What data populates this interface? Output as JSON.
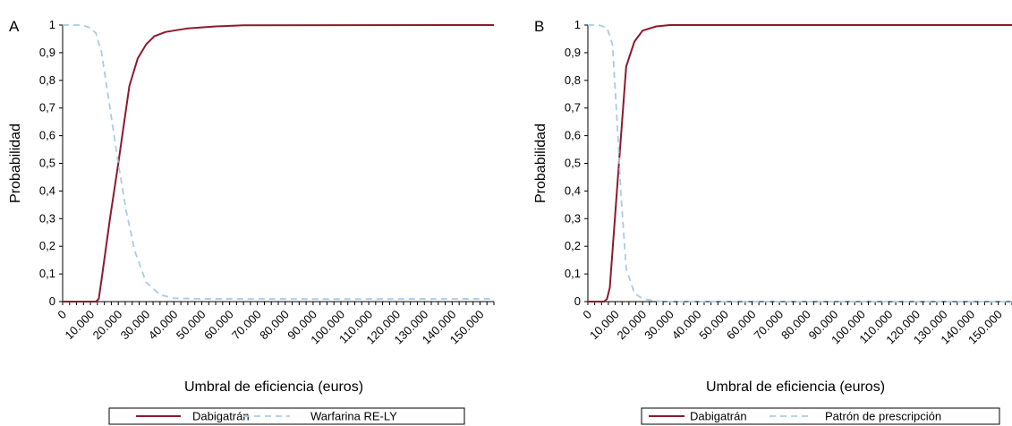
{
  "chart_data": [
    {
      "panel": "A",
      "type": "line",
      "xlabel": "Umbral de eficiencia (euros)",
      "ylabel": "Probabilidad",
      "xlim": [
        0,
        155000
      ],
      "ylim": [
        0,
        1
      ],
      "x_ticks": [
        "0",
        "10.000",
        "20.000",
        "30.000",
        "40.000",
        "50.000",
        "60.000",
        "70.000",
        "80.000",
        "90.000",
        "100.000",
        "110.000",
        "120.000",
        "130.000",
        "140.000",
        "150.000"
      ],
      "y_ticks": [
        "0",
        "0,1",
        "0,2",
        "0,3",
        "0,4",
        "0,5",
        "0,6",
        "0,7",
        "0,8",
        "0,9",
        "1"
      ],
      "grid": false,
      "legend_position": "bottom",
      "series": [
        {
          "name": "Dabigatrán",
          "color": "#8b1a2e",
          "dash": "solid",
          "points": [
            [
              0,
              0
            ],
            [
              10000,
              0
            ],
            [
              12000,
              0
            ],
            [
              13000,
              0.01
            ],
            [
              14000,
              0.08
            ],
            [
              17000,
              0.3
            ],
            [
              20000,
              0.5
            ],
            [
              22000,
              0.64
            ],
            [
              24000,
              0.78
            ],
            [
              27000,
              0.88
            ],
            [
              30000,
              0.93
            ],
            [
              33000,
              0.96
            ],
            [
              37000,
              0.975
            ],
            [
              45000,
              0.988
            ],
            [
              55000,
              0.995
            ],
            [
              65000,
              0.999
            ],
            [
              155000,
              1.0
            ]
          ]
        },
        {
          "name": "Warfarina RE-LY",
          "color": "#a8cbe8",
          "dash": "dashed",
          "points": [
            [
              0,
              1.0
            ],
            [
              7000,
              1.0
            ],
            [
              10000,
              0.99
            ],
            [
              12000,
              0.97
            ],
            [
              14000,
              0.9
            ],
            [
              17000,
              0.7
            ],
            [
              20000,
              0.5
            ],
            [
              23000,
              0.32
            ],
            [
              26000,
              0.18
            ],
            [
              30000,
              0.07
            ],
            [
              35000,
              0.025
            ],
            [
              40000,
              0.012
            ],
            [
              50000,
              0.01
            ],
            [
              100000,
              0.009
            ],
            [
              155000,
              0.01
            ]
          ]
        }
      ]
    },
    {
      "panel": "B",
      "type": "line",
      "xlabel": "Umbral de eficiencia (euros)",
      "ylabel": "Probabilidad",
      "xlim": [
        0,
        155000
      ],
      "ylim": [
        0,
        1
      ],
      "x_ticks": [
        "0",
        "10.000",
        "20.000",
        "30.000",
        "40.000",
        "50.000",
        "60.000",
        "70.000",
        "80.000",
        "90.000",
        "100.000",
        "110.000",
        "120.000",
        "130.000",
        "140.000",
        "150.000"
      ],
      "y_ticks": [
        "0",
        "0,1",
        "0,2",
        "0,3",
        "0,4",
        "0,5",
        "0,6",
        "0,7",
        "0,8",
        "0,9",
        "1"
      ],
      "grid": false,
      "legend_position": "bottom",
      "series": [
        {
          "name": "Dabigatrán",
          "color": "#8b1a2e",
          "dash": "solid",
          "points": [
            [
              0,
              0
            ],
            [
              6000,
              0
            ],
            [
              7000,
              0.01
            ],
            [
              8000,
              0.05
            ],
            [
              11000,
              0.45
            ],
            [
              14000,
              0.85
            ],
            [
              17000,
              0.94
            ],
            [
              20000,
              0.98
            ],
            [
              25000,
              0.995
            ],
            [
              30000,
              1.0
            ],
            [
              155000,
              1.0
            ]
          ]
        },
        {
          "name": "Patrón de prescripción",
          "color": "#a8cbe8",
          "dash": "dashed",
          "points": [
            [
              0,
              1.0
            ],
            [
              4000,
              1.0
            ],
            [
              7000,
              0.99
            ],
            [
              9000,
              0.93
            ],
            [
              11000,
              0.6
            ],
            [
              12000,
              0.4
            ],
            [
              14000,
              0.12
            ],
            [
              17000,
              0.03
            ],
            [
              20000,
              0.01
            ],
            [
              25000,
              0.002
            ],
            [
              30000,
              0
            ],
            [
              155000,
              0
            ]
          ]
        }
      ]
    }
  ]
}
